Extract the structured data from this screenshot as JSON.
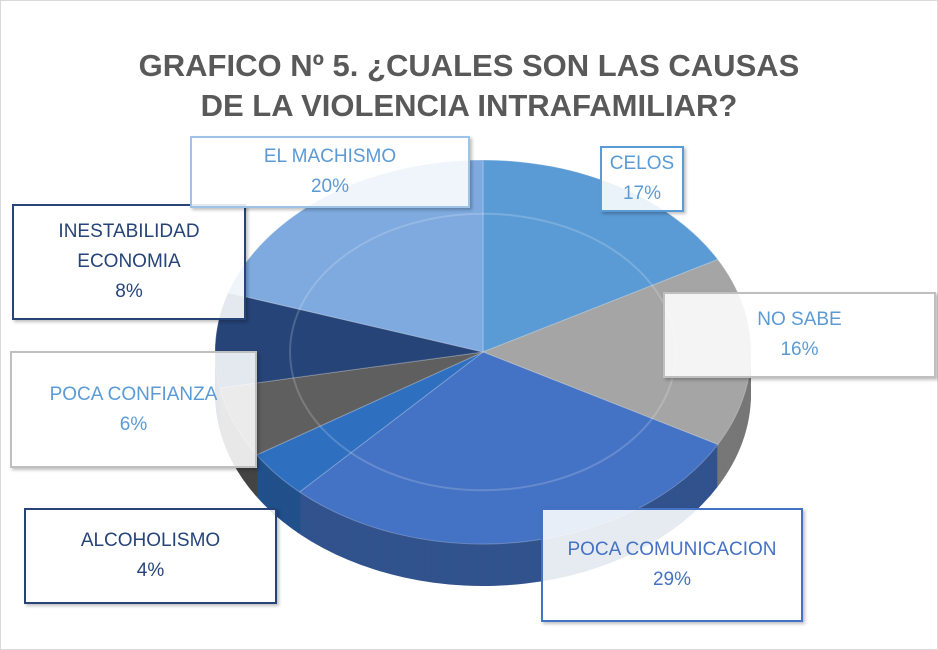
{
  "chart_data": {
    "type": "pie",
    "title": "GRAFICO Nº 5. ¿CUALES SON LAS CAUSAS DE LA VIOLENCIA INTRAFAMILIAR?",
    "categories": [
      "CELOS",
      "NO SABE",
      "POCA COMUNICACION",
      "ALCOHOLISMO",
      "POCA CONFIANZA",
      "INESTABILIDAD ECONOMIA",
      "EL MACHISMO"
    ],
    "values": [
      17,
      16,
      29,
      4,
      6,
      8,
      20
    ],
    "value_labels": [
      "17%",
      "16%",
      "29%",
      "4%",
      "6%",
      "8%",
      "20%"
    ],
    "colors": [
      "#5b9bd5",
      "#a5a5a5",
      "#4472c4",
      "#2e6fbf",
      "#5f5f5f",
      "#264478",
      "#7eaadf"
    ]
  }
}
